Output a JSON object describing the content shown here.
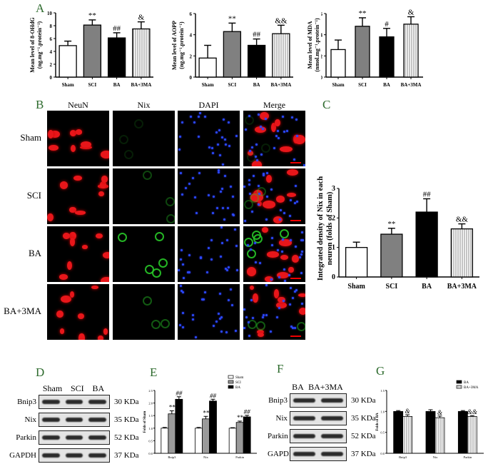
{
  "panels": {
    "A": {
      "label": "A"
    },
    "B": {
      "label": "B",
      "columns": [
        "NeuN",
        "Nix",
        "DAPI",
        "Merge"
      ],
      "rows": [
        "Sham",
        "SCI",
        "BA",
        "BA+3MA"
      ]
    },
    "C": {
      "label": "C"
    },
    "D": {
      "label": "D",
      "lanes": [
        "Sham",
        "SCI",
        "BA"
      ],
      "proteins": [
        "Bnip3",
        "Nix",
        "Parkin",
        "GAPDH"
      ],
      "sizes": [
        "30 KDa",
        "35 KDa",
        "52 KDa",
        "37 KDa"
      ]
    },
    "E": {
      "label": "E"
    },
    "F": {
      "label": "F",
      "lanes": [
        "BA",
        "BA+3MA"
      ],
      "proteins": [
        "Bnip3",
        "Nix",
        "Parkin",
        "GAPDH"
      ],
      "sizes": [
        "30 KDa",
        "35 KDa",
        "52 KDa",
        "37 KDa"
      ]
    },
    "G": {
      "label": "G"
    }
  },
  "chart_data": [
    {
      "id": "A1",
      "type": "bar",
      "categories": [
        "Sham",
        "SCI",
        "BA",
        "BA+3MA"
      ],
      "values": [
        4.9,
        8.1,
        6.1,
        7.5
      ],
      "errors": [
        0.7,
        0.8,
        0.8,
        1.1
      ],
      "annotations": [
        "",
        "**",
        "##",
        "&"
      ],
      "ylabel": "Mean level of 8-OHdG (ng.mg⁻¹.protein⁻¹)",
      "ylim": [
        0,
        10
      ],
      "yticks": [
        0,
        2,
        4,
        6,
        8,
        10
      ]
    },
    {
      "id": "A2",
      "type": "bar",
      "categories": [
        "Sham",
        "SCI",
        "BA",
        "BA+3MA"
      ],
      "values": [
        1.8,
        4.3,
        3.0,
        4.1
      ],
      "errors": [
        1.2,
        0.8,
        0.6,
        0.8
      ],
      "annotations": [
        "",
        "**",
        "##",
        "&&"
      ],
      "ylabel": "Mean level of AOPP (ng.mg⁻¹.protein⁻¹)",
      "ylim": [
        0,
        6
      ],
      "yticks": [
        0,
        2,
        4,
        6
      ]
    },
    {
      "id": "A3",
      "type": "bar",
      "categories": [
        "Sham",
        "SCI",
        "BA",
        "BA+3MA"
      ],
      "values": [
        2.6,
        4.8,
        3.8,
        5.0
      ],
      "errors": [
        0.9,
        0.8,
        0.8,
        0.7
      ],
      "annotations": [
        "",
        "**",
        "#",
        "&"
      ],
      "ylabel": "Mean level of MDA (nmol.mg⁻¹.protein⁻¹)",
      "ylim": [
        0,
        6
      ],
      "yticks": [
        0,
        2,
        4,
        6
      ]
    },
    {
      "id": "C",
      "type": "bar",
      "categories": [
        "Sham",
        "SCI",
        "BA",
        "BA+3MA"
      ],
      "values": [
        1.0,
        1.45,
        2.2,
        1.63
      ],
      "errors": [
        0.18,
        0.2,
        0.45,
        0.17
      ],
      "annotations": [
        "",
        "**",
        "##",
        "&&"
      ],
      "ylabel": "Integrated density of Nix in each neuron (folds of Sham)",
      "ylim": [
        0,
        3
      ],
      "yticks": [
        0,
        1,
        2,
        3
      ]
    },
    {
      "id": "E",
      "type": "bar",
      "categories": [
        "Bnip3",
        "Nix",
        "Parkin"
      ],
      "series": [
        {
          "name": "Sham",
          "values": [
            1.0,
            1.0,
            1.0
          ],
          "errors": [
            0.03,
            0.03,
            0.02
          ]
        },
        {
          "name": "SCI",
          "values": [
            1.57,
            1.37,
            1.23
          ],
          "errors": [
            0.12,
            0.1,
            0.05
          ]
        },
        {
          "name": "BA",
          "values": [
            2.15,
            2.08,
            1.45
          ],
          "errors": [
            0.1,
            0.07,
            0.06
          ]
        }
      ],
      "annotations": {
        "SCI": [
          "**",
          "**",
          "**"
        ],
        "BA": [
          "##",
          "##",
          "##"
        ]
      },
      "ylabel": "Folds of Sham",
      "ylim": [
        0,
        2.5
      ],
      "yticks": [
        0.0,
        0.5,
        1.0,
        1.5,
        2.0,
        2.5
      ],
      "legend_position": "top-right"
    },
    {
      "id": "G",
      "type": "bar",
      "categories": [
        "Bnip3",
        "Nix",
        "Parkin"
      ],
      "series": [
        {
          "name": "BA",
          "values": [
            1.0,
            1.0,
            1.0
          ],
          "errors": [
            0.02,
            0.04,
            0.02
          ]
        },
        {
          "name": "BA+3MA",
          "values": [
            0.88,
            0.85,
            0.88
          ],
          "errors": [
            0.04,
            0.04,
            0.02
          ]
        }
      ],
      "annotations": {
        "BA+3MA": [
          "&",
          "&",
          "&&"
        ]
      },
      "ylabel": "Folds of BA",
      "ylim": [
        0,
        1.5
      ],
      "yticks": [
        0.0,
        0.5,
        1.0,
        1.5
      ],
      "legend_position": "top-right"
    }
  ]
}
